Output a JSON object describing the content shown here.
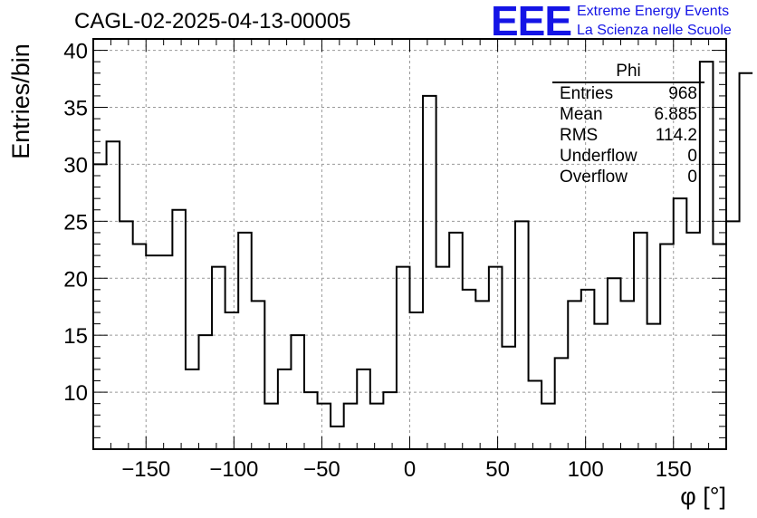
{
  "header": {
    "title": "CAGL-02-2025-04-13-00005",
    "logo_text": "EEE",
    "logo_line1": "Extreme Energy Events",
    "logo_line2": "La Scienza nelle Scuole"
  },
  "stats": {
    "title": "Phi",
    "rows": [
      {
        "label": "Entries",
        "value": "968"
      },
      {
        "label": "Mean",
        "value": "6.885"
      },
      {
        "label": "RMS",
        "value": "114.2"
      },
      {
        "label": "Underflow",
        "value": "0"
      },
      {
        "label": "Overflow",
        "value": "0"
      }
    ]
  },
  "chart_data": {
    "type": "bar",
    "style": "step-histogram",
    "title": "CAGL-02-2025-04-13-00005",
    "xlabel": "φ [°]",
    "ylabel": "Entries/bin",
    "xlim": [
      -180,
      180
    ],
    "ylim": [
      5,
      41
    ],
    "grid": true,
    "bin_width": 7.5,
    "x_ticks": [
      -150,
      -100,
      -50,
      0,
      50,
      100,
      150
    ],
    "y_ticks": [
      10,
      15,
      20,
      25,
      30,
      35,
      40
    ],
    "x_tick_labels": [
      "−150",
      "−100",
      "−50",
      "0",
      "50",
      "100",
      "150"
    ],
    "y_tick_labels": [
      "10",
      "15",
      "20",
      "25",
      "30",
      "35",
      "40"
    ],
    "bin_edges_start": -180,
    "values": [
      30,
      32,
      25,
      23,
      22,
      22,
      26,
      12,
      15,
      21,
      17,
      24,
      18,
      9,
      12,
      15,
      10,
      9,
      7,
      9,
      12,
      9,
      10,
      21,
      17,
      36,
      21,
      24,
      19,
      18,
      21,
      14,
      25,
      11,
      9,
      13,
      18,
      19,
      16,
      20,
      18,
      24,
      16,
      23,
      27,
      24,
      39,
      23,
      25,
      38
    ]
  },
  "colors": {
    "line": "#000000",
    "grid": "#999999",
    "logo": "#1414e6"
  }
}
